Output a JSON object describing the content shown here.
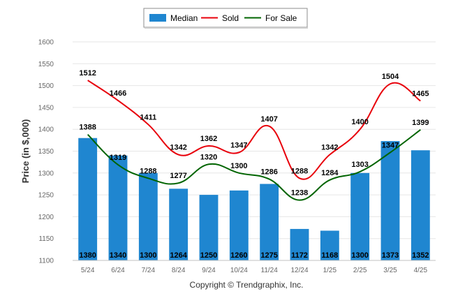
{
  "chart_data": {
    "type": "bar",
    "title": "",
    "xlabel": "",
    "ylabel": "Price (in $,000)",
    "ylim": [
      1100,
      1600
    ],
    "yticks": [
      1100,
      1150,
      1200,
      1250,
      1300,
      1350,
      1400,
      1450,
      1500,
      1550,
      1600
    ],
    "grid": true,
    "legend_position": "top-center",
    "categories": [
      "5/24",
      "6/24",
      "7/24",
      "8/24",
      "9/24",
      "10/24",
      "11/24",
      "12/24",
      "1/25",
      "2/25",
      "3/25",
      "4/25"
    ],
    "series": [
      {
        "name": "Median",
        "type": "bar",
        "color": "#1f86d0",
        "values": [
          1380,
          1340,
          1300,
          1264,
          1250,
          1260,
          1275,
          1172,
          1168,
          1300,
          1373,
          1352
        ]
      },
      {
        "name": "Sold",
        "type": "line",
        "color": "#e8000b",
        "values": [
          1512,
          1466,
          1411,
          1342,
          1362,
          1347,
          1407,
          1288,
          1342,
          1400,
          1504,
          1465
        ]
      },
      {
        "name": "For Sale",
        "type": "line",
        "color": "#006400",
        "values": [
          1388,
          1319,
          1288,
          1277,
          1320,
          1300,
          1286,
          1238,
          1284,
          1303,
          1347,
          1399
        ]
      }
    ]
  },
  "footer": {
    "copyright": "Copyright © Trendgraphix, Inc."
  }
}
